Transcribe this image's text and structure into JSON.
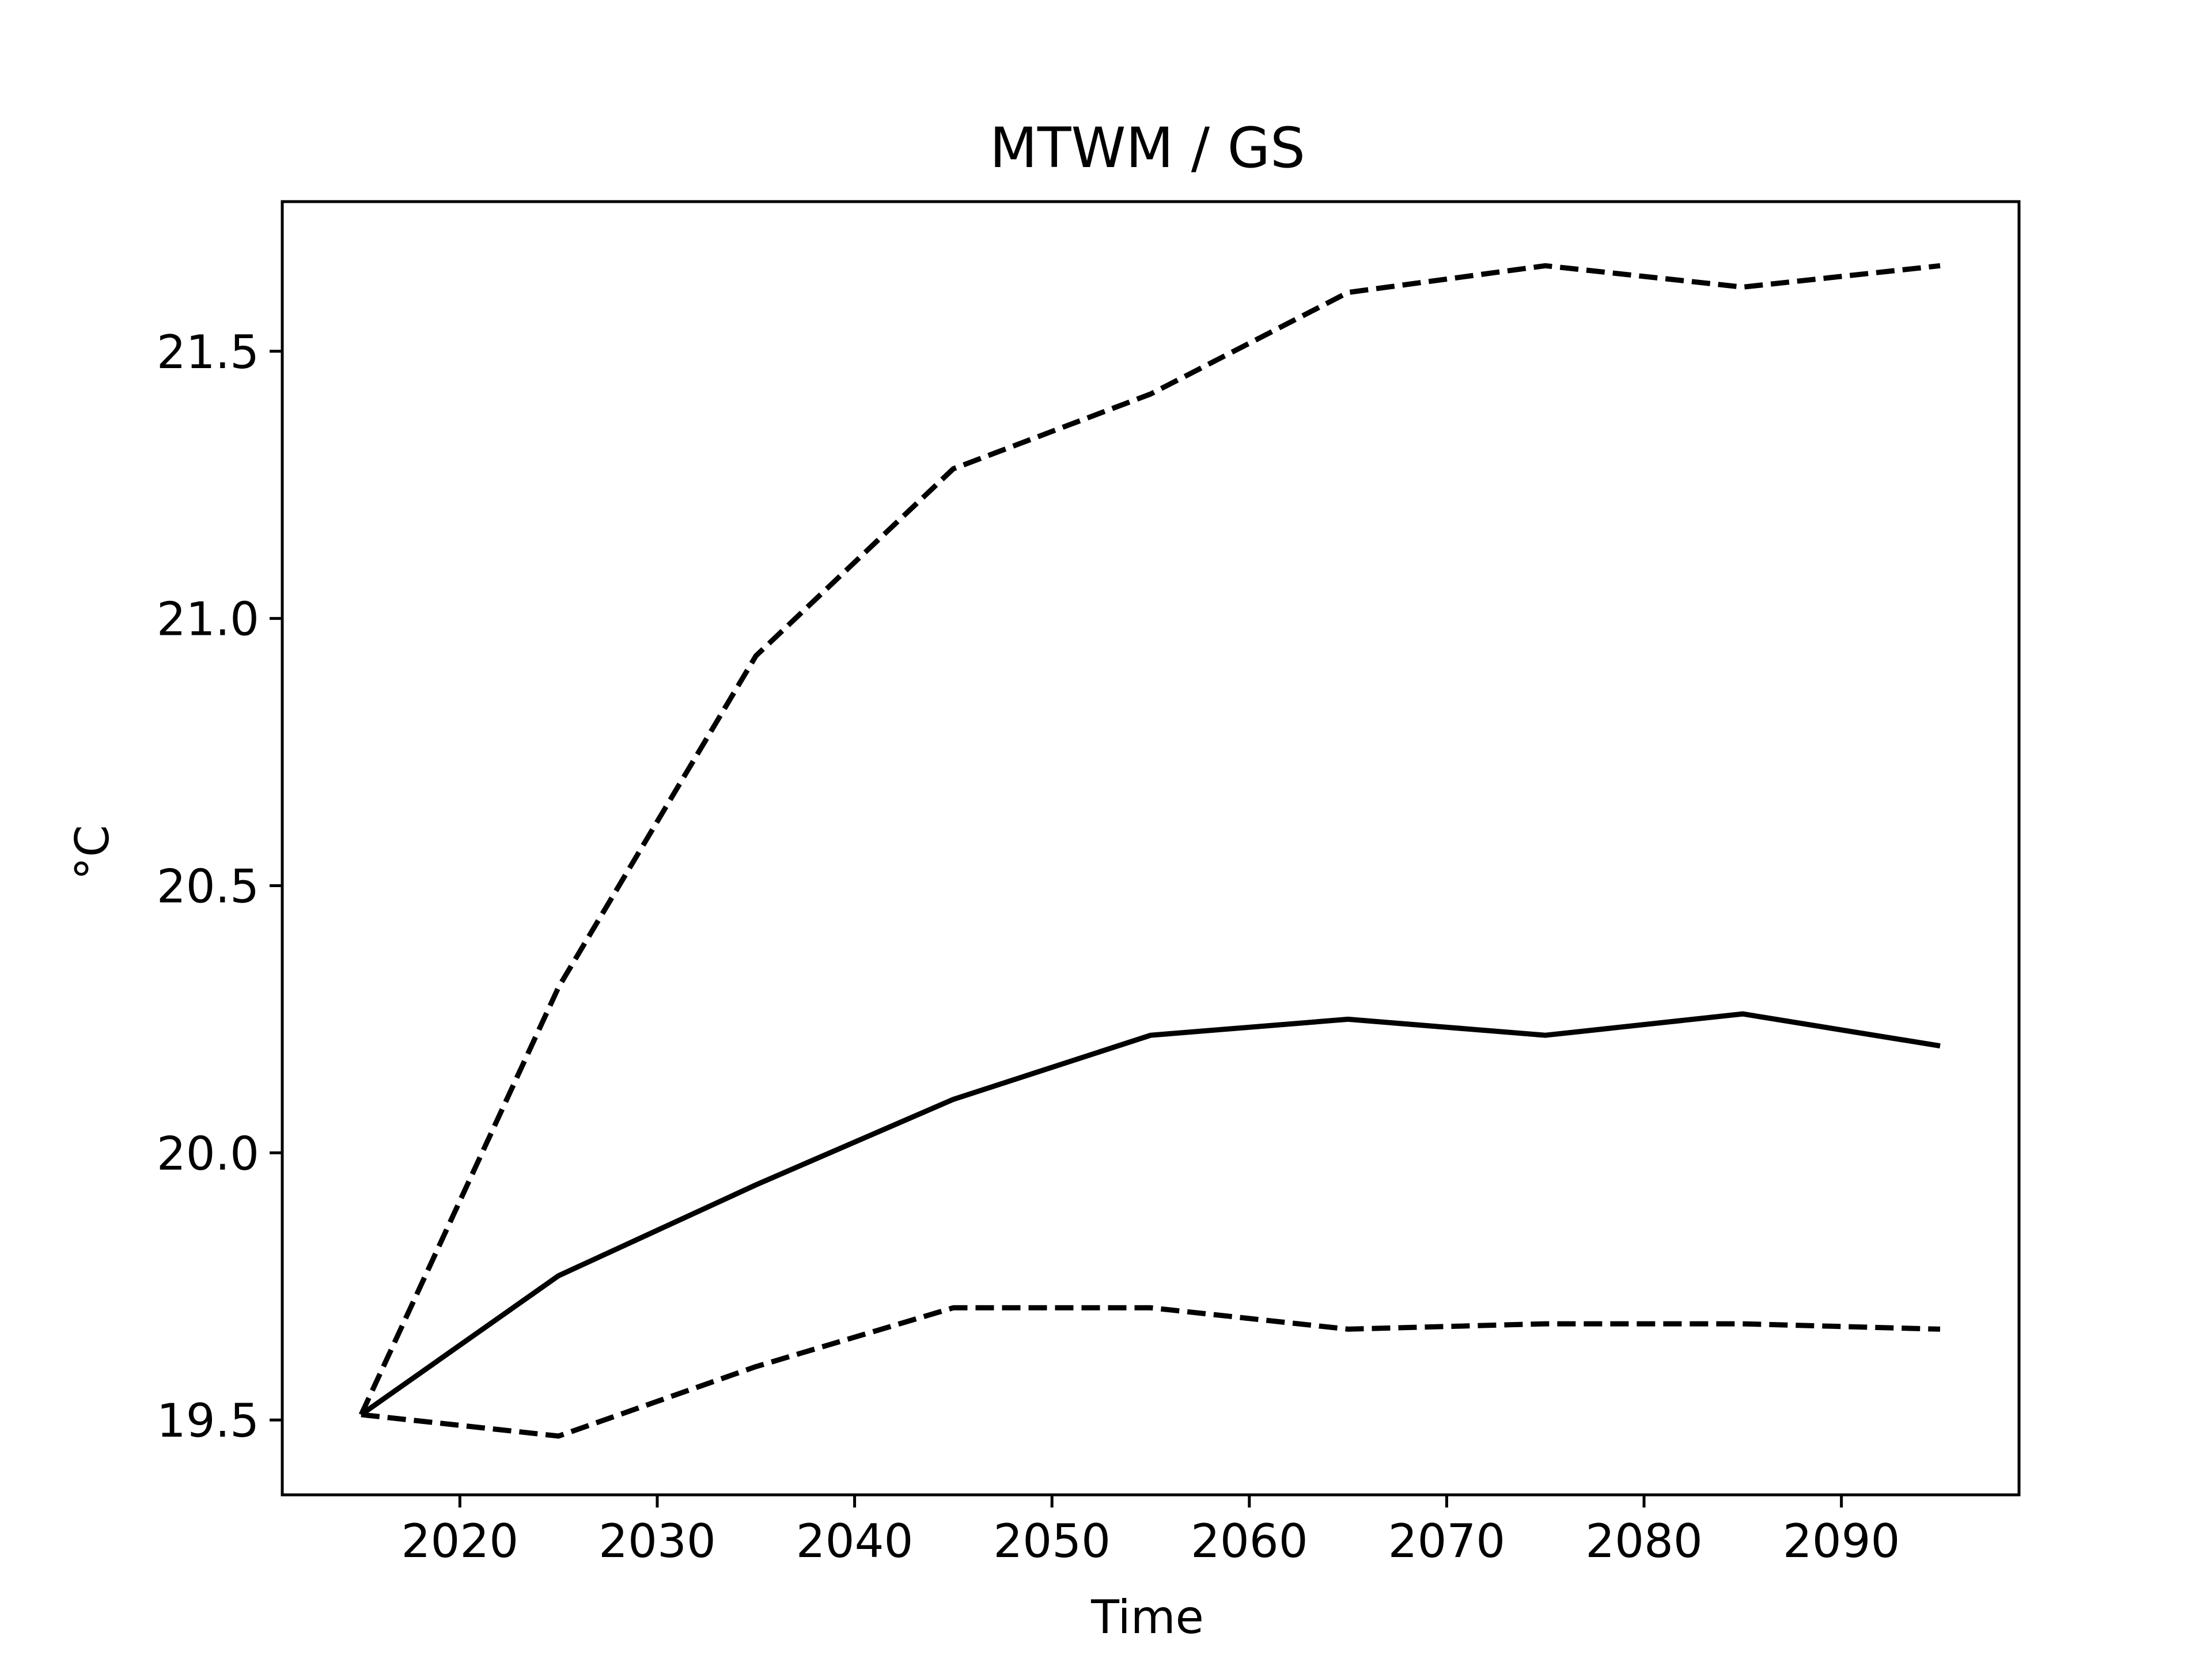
{
  "chart_data": {
    "type": "line",
    "title": "MTWM / GS",
    "xlabel": "Time",
    "ylabel": "°C",
    "xlim": [
      2011,
      2099
    ],
    "ylim": [
      19.36,
      21.78
    ],
    "x_ticks": [
      2020,
      2030,
      2040,
      2050,
      2060,
      2070,
      2080,
      2090
    ],
    "y_ticks": [
      19.5,
      20.0,
      20.5,
      21.0,
      21.5
    ],
    "y_tick_labels": [
      "19.5",
      "20.0",
      "20.5",
      "21.0",
      "21.5"
    ],
    "grid": false,
    "legend": "none",
    "series": [
      {
        "style": "solid",
        "color": "#000000",
        "x": [
          2015,
          2025,
          2035,
          2045,
          2055,
          2065,
          2075,
          2085,
          2095
        ],
        "y": [
          19.51,
          19.77,
          19.94,
          20.1,
          20.22,
          20.25,
          20.22,
          20.26,
          20.2
        ]
      },
      {
        "style": "dashed",
        "color": "#000000",
        "x": [
          2015,
          2025,
          2035,
          2045,
          2055,
          2065,
          2075,
          2085,
          2095
        ],
        "y": [
          19.51,
          20.31,
          20.93,
          21.28,
          21.42,
          21.61,
          21.66,
          21.62,
          21.66
        ]
      },
      {
        "style": "dashed",
        "color": "#000000",
        "x": [
          2015,
          2025,
          2035,
          2045,
          2055,
          2065,
          2075,
          2085,
          2095
        ],
        "y": [
          19.51,
          19.47,
          19.6,
          19.71,
          19.71,
          19.67,
          19.68,
          19.68,
          19.67
        ]
      }
    ]
  }
}
